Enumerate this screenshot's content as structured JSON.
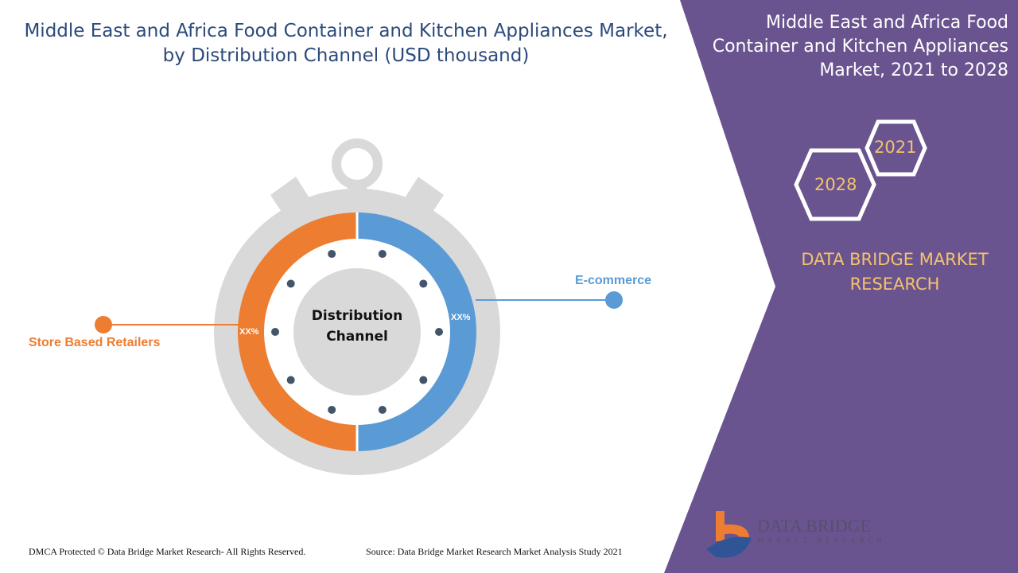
{
  "header": {
    "title": "Middle East and Africa Food Container and Kitchen Appliances Market, by Distribution Channel (USD thousand)"
  },
  "side_panel": {
    "title": "Middle East and Africa Food Container and Kitchen Appliances Market, 2021 to 2028",
    "year_start": "2021",
    "year_end": "2028",
    "brand": "DATA BRIDGE MARKET RESEARCH",
    "logo_text": "DATA BRIDGE",
    "logo_subtext": "MARKET RESEARCH",
    "color": "#6a5490"
  },
  "chart_data": {
    "type": "pie",
    "title": "Distribution Channel",
    "categories": [
      "Store Based Retailers",
      "E-commerce"
    ],
    "value_labels": [
      "XX%",
      "XX%"
    ],
    "colors": [
      "#ed7d31",
      "#5b9bd5"
    ]
  },
  "footer": {
    "copyright": "DMCA Protected © Data Bridge Market Research- All Rights Reserved.",
    "source": "Source: Data Bridge Market Research Market Analysis Study 2021"
  }
}
